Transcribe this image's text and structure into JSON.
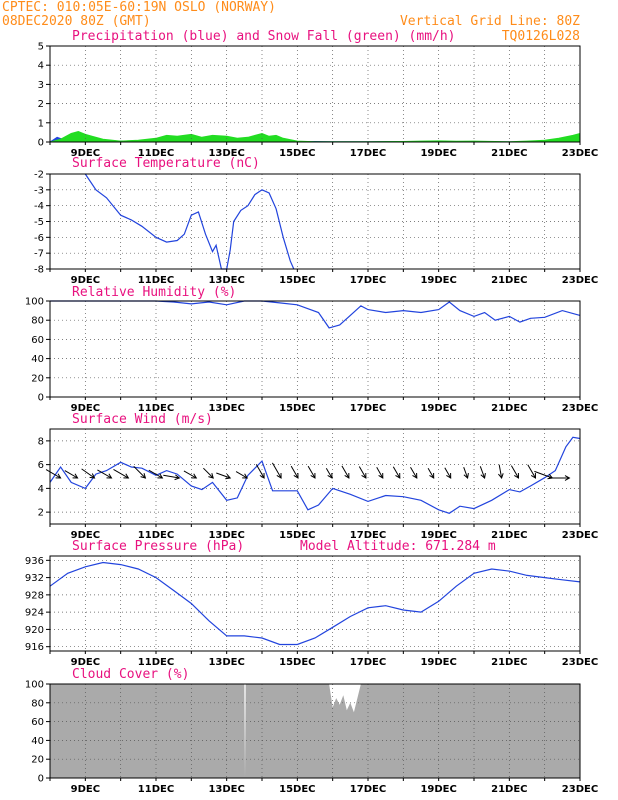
{
  "header": {
    "line1_left": "CPTEC:  010:05E-60:19N  OSLO (NORWAY)",
    "line2_left": "08DEC2020 80Z (GMT)",
    "line2_right": "Vertical Grid Line: 80Z",
    "line3_right": "TQ0126L028"
  },
  "colors": {
    "header": "#ff8c1a",
    "title": "#e8117f",
    "line": "#2244dd",
    "snow": "#22dd22",
    "cloud": "#aaaaaa"
  },
  "chart_data": [
    {
      "type": "area",
      "title": "Precipitation (blue) and Snow Fall (green) (mm/h)",
      "categories": [
        "9DEC",
        "11DEC",
        "13DEC",
        "15DEC",
        "17DEC",
        "19DEC",
        "21DEC",
        "23DEC"
      ],
      "ylim": [
        0,
        5
      ],
      "yticks": [
        0,
        1,
        2,
        3,
        4,
        5
      ],
      "grid": true,
      "series": [
        {
          "name": "Precipitation",
          "color": "#2244dd",
          "x": [
            8,
            8.2,
            8.5,
            9,
            9.5,
            10,
            10.5,
            11,
            11.5,
            12,
            12.5,
            13,
            13.5,
            14,
            14.5,
            15,
            15.5,
            16,
            17,
            18,
            19,
            20,
            21,
            22,
            23
          ],
          "values": [
            0,
            0.25,
            0.05,
            0.1,
            0.08,
            0.05,
            0.05,
            0.06,
            0.05,
            0.04,
            0.05,
            0.05,
            0.06,
            0.05,
            0.04,
            0.02,
            0.03,
            0.02,
            0.02,
            0.03,
            0.02,
            0.02,
            0.01,
            0.02,
            0.03
          ]
        },
        {
          "name": "Snow Fall",
          "color": "#22dd22",
          "x": [
            8,
            8.3,
            8.6,
            8.8,
            9,
            9.2,
            9.5,
            10,
            10.5,
            11,
            11.3,
            11.6,
            12,
            12.3,
            12.6,
            13,
            13.3,
            13.6,
            14,
            14.2,
            14.4,
            14.6,
            15,
            15.5,
            16,
            17,
            18,
            18.5,
            19,
            19.5,
            20,
            21,
            21.5,
            22,
            22.4,
            22.8,
            23
          ],
          "values": [
            0,
            0.15,
            0.45,
            0.55,
            0.4,
            0.3,
            0.15,
            0.05,
            0.1,
            0.2,
            0.35,
            0.3,
            0.4,
            0.25,
            0.35,
            0.3,
            0.2,
            0.25,
            0.45,
            0.3,
            0.35,
            0.2,
            0.05,
            0.02,
            0.02,
            0.02,
            0.03,
            0.05,
            0.06,
            0.04,
            0.05,
            0.02,
            0.05,
            0.1,
            0.2,
            0.35,
            0.45
          ]
        }
      ]
    },
    {
      "type": "line",
      "title": "Surface Temperature (nC)",
      "categories": [
        "9DEC",
        "11DEC",
        "13DEC",
        "15DEC",
        "17DEC",
        "19DEC",
        "21DEC",
        "23DEC"
      ],
      "ylim": [
        -8,
        -2
      ],
      "yticks": [
        -8,
        -7,
        -6,
        -5,
        -4,
        -3,
        -2
      ],
      "grid": true,
      "series": [
        {
          "name": "Temperature",
          "color": "#2244dd",
          "x": [
            9,
            9.3,
            9.6,
            10,
            10.3,
            10.6,
            11,
            11.3,
            11.6,
            11.8,
            12,
            12.2,
            12.4,
            12.6,
            12.7,
            12.85,
            13,
            13.1,
            13.2,
            13.4,
            13.6,
            13.8,
            14,
            14.2,
            14.4,
            14.6,
            14.8,
            14.9
          ],
          "values": [
            -2,
            -3,
            -3.5,
            -4.6,
            -4.9,
            -5.3,
            -6,
            -6.3,
            -6.2,
            -5.8,
            -4.6,
            -4.4,
            -5.8,
            -6.9,
            -6.5,
            -8,
            -8.1,
            -6.8,
            -5,
            -4.3,
            -4,
            -3.3,
            -3,
            -3.2,
            -4.2,
            -6,
            -7.5,
            -8
          ]
        }
      ]
    },
    {
      "type": "line",
      "title": "Relative Humidity (%)",
      "categories": [
        "9DEC",
        "11DEC",
        "13DEC",
        "15DEC",
        "17DEC",
        "19DEC",
        "21DEC",
        "23DEC"
      ],
      "ylim": [
        0,
        100
      ],
      "yticks": [
        0,
        20,
        40,
        60,
        80,
        100
      ],
      "grid": true,
      "series": [
        {
          "name": "Relative Humidity",
          "color": "#2244dd",
          "x": [
            8,
            9,
            10,
            11,
            11.5,
            12,
            12.5,
            13,
            13.5,
            14,
            14.5,
            15,
            15.3,
            15.6,
            15.9,
            16.2,
            16.5,
            16.8,
            17,
            17.5,
            18,
            18.5,
            19,
            19.3,
            19.6,
            20,
            20.3,
            20.6,
            21,
            21.3,
            21.6,
            22,
            22.5,
            23
          ],
          "values": [
            100,
            100,
            100,
            100,
            99,
            97,
            99,
            96,
            100,
            100,
            98,
            96,
            92,
            88,
            72,
            75,
            85,
            95,
            91,
            88,
            90,
            88,
            91,
            99,
            90,
            84,
            88,
            80,
            84,
            78,
            82,
            83,
            90,
            85
          ]
        }
      ]
    },
    {
      "type": "line",
      "title": "Surface Wind (m/s)",
      "categories": [
        "9DEC",
        "11DEC",
        "13DEC",
        "15DEC",
        "17DEC",
        "19DEC",
        "21DEC",
        "23DEC"
      ],
      "ylim": [
        1,
        9
      ],
      "yticks": [
        2,
        4,
        6,
        8
      ],
      "grid": true,
      "series": [
        {
          "name": "Wind Speed",
          "color": "#2244dd",
          "x": [
            8,
            8.3,
            8.6,
            9,
            9.3,
            9.6,
            10,
            10.3,
            10.6,
            11,
            11.3,
            11.6,
            12,
            12.3,
            12.6,
            13,
            13.3,
            13.6,
            14,
            14.3,
            14.6,
            15,
            15.3,
            15.6,
            16,
            16.5,
            17,
            17.5,
            18,
            18.5,
            19,
            19.3,
            19.6,
            20,
            20.5,
            21,
            21.3,
            21.6,
            22,
            22.3,
            22.6,
            22.8,
            23
          ],
          "values": [
            4.5,
            5.8,
            4.5,
            4,
            5.2,
            5.5,
            6.2,
            5.8,
            5.7,
            5.1,
            5.5,
            5.2,
            4.2,
            3.9,
            4.5,
            3,
            3.2,
            5.1,
            6.3,
            3.8,
            3.8,
            3.8,
            2.2,
            2.6,
            4,
            3.5,
            2.9,
            3.4,
            3.3,
            3,
            2.2,
            1.9,
            2.5,
            2.3,
            3,
            3.9,
            3.7,
            4.2,
            4.9,
            5.5,
            7.5,
            8.3,
            8.2
          ]
        }
      ],
      "wind_barbs_deg": [
        300,
        300,
        305,
        300,
        300,
        315,
        300,
        280,
        300,
        315,
        290,
        300,
        330,
        330,
        330,
        330,
        330,
        330,
        330,
        330,
        330,
        330,
        330,
        330,
        340,
        340,
        350,
        330,
        330,
        290,
        270
      ]
    },
    {
      "type": "line",
      "title": "Surface Pressure (hPa)",
      "annotation": "Model Altitude: 671.284 m",
      "categories": [
        "9DEC",
        "11DEC",
        "13DEC",
        "15DEC",
        "17DEC",
        "19DEC",
        "21DEC",
        "23DEC"
      ],
      "ylim": [
        915,
        937
      ],
      "yticks": [
        916,
        920,
        924,
        928,
        932,
        936
      ],
      "grid": true,
      "series": [
        {
          "name": "Surface Pressure",
          "color": "#2244dd",
          "x": [
            8,
            8.5,
            9,
            9.5,
            10,
            10.5,
            11,
            11.5,
            12,
            12.5,
            13,
            13.5,
            14,
            14.5,
            15,
            15.5,
            16,
            16.5,
            17,
            17.5,
            18,
            18.5,
            19,
            19.5,
            20,
            20.5,
            21,
            21.5,
            22,
            22.5,
            23
          ],
          "values": [
            930,
            933,
            934.5,
            935.5,
            935,
            934,
            932,
            929,
            926,
            922,
            918.5,
            918.5,
            918,
            916.5,
            916.5,
            918,
            920.5,
            923,
            925,
            925.5,
            924.5,
            924,
            926.5,
            930,
            933,
            934,
            933.5,
            932.5,
            932,
            931.5,
            931
          ]
        }
      ]
    },
    {
      "type": "area",
      "title": "Cloud Cover (%)",
      "categories": [
        "9DEC",
        "11DEC",
        "13DEC",
        "15DEC",
        "17DEC",
        "19DEC",
        "21DEC",
        "23DEC"
      ],
      "ylim": [
        0,
        100
      ],
      "yticks": [
        0,
        20,
        40,
        60,
        80,
        100
      ],
      "grid": true,
      "series": [
        {
          "name": "Cloud Cover",
          "color": "#aaaaaa",
          "x": [
            8,
            13.5,
            13.52,
            13.54,
            15.9,
            16,
            16.1,
            16.2,
            16.3,
            16.4,
            16.5,
            16.6,
            16.7,
            16.8,
            23
          ],
          "values": [
            100,
            100,
            0,
            100,
            100,
            75,
            85,
            78,
            88,
            72,
            80,
            70,
            85,
            100,
            100
          ]
        }
      ]
    }
  ]
}
